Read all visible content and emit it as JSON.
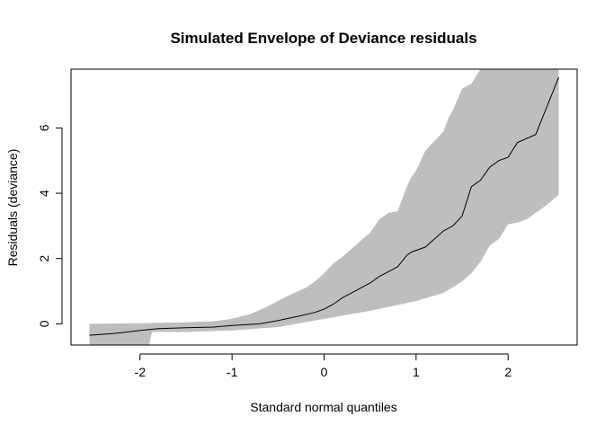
{
  "chart_data": {
    "type": "line",
    "title": "Simulated Envelope of Deviance residuals",
    "xlabel": "Standard normal quantiles",
    "ylabel": "Residuals (deviance)",
    "xlim": [
      -2.75,
      2.75
    ],
    "ylim": [
      -0.65,
      7.8
    ],
    "x_ticks": [
      -2,
      -1,
      0,
      1,
      2
    ],
    "y_ticks": [
      0,
      2,
      4,
      6
    ],
    "grid": false,
    "legend": "none",
    "colors": {
      "envelope": "#bebebe",
      "line": "#000000"
    },
    "series": [
      {
        "role": "envelope-upper",
        "x": [
          -2.55,
          -2.0,
          -1.5,
          -1.2,
          -1.0,
          -0.8,
          -0.6,
          -0.4,
          -0.2,
          -0.1,
          0.0,
          0.1,
          0.2,
          0.3,
          0.4,
          0.5,
          0.6,
          0.7,
          0.8,
          0.9,
          0.95,
          1.0,
          1.1,
          1.2,
          1.3,
          1.35,
          1.4,
          1.5,
          1.6,
          1.7,
          1.8,
          1.9,
          2.0,
          2.2,
          2.3,
          2.55
        ],
        "values": [
          0.0,
          0.02,
          0.05,
          0.08,
          0.15,
          0.3,
          0.55,
          0.85,
          1.1,
          1.3,
          1.55,
          1.85,
          2.05,
          2.3,
          2.55,
          2.8,
          3.2,
          3.4,
          3.45,
          4.2,
          4.5,
          4.7,
          5.3,
          5.6,
          5.9,
          6.3,
          6.55,
          7.2,
          7.35,
          7.8,
          7.8,
          7.8,
          7.8,
          7.8,
          7.8,
          7.8
        ]
      },
      {
        "role": "envelope-lower",
        "x": [
          -2.55,
          -2.0,
          -1.9,
          -1.87,
          -1.5,
          -1.0,
          -0.5,
          0.0,
          0.5,
          1.0,
          1.3,
          1.5,
          1.6,
          1.7,
          1.8,
          1.9,
          2.0,
          2.1,
          2.2,
          2.4,
          2.55
        ],
        "values": [
          -0.7,
          -0.7,
          -0.7,
          -0.25,
          -0.25,
          -0.2,
          -0.1,
          0.15,
          0.4,
          0.7,
          0.95,
          1.3,
          1.55,
          1.9,
          2.4,
          2.6,
          3.05,
          3.1,
          3.2,
          3.6,
          3.95
        ]
      },
      {
        "role": "residuals",
        "x": [
          -2.55,
          -2.3,
          -2.0,
          -1.8,
          -1.5,
          -1.2,
          -1.0,
          -0.7,
          -0.5,
          -0.3,
          -0.1,
          0.0,
          0.1,
          0.2,
          0.3,
          0.4,
          0.5,
          0.6,
          0.7,
          0.8,
          0.9,
          0.95,
          1.1,
          1.2,
          1.3,
          1.4,
          1.5,
          1.6,
          1.7,
          1.8,
          1.9,
          2.0,
          2.1,
          2.3,
          2.55
        ],
        "values": [
          -0.35,
          -0.3,
          -0.2,
          -0.15,
          -0.12,
          -0.1,
          -0.05,
          0.0,
          0.1,
          0.22,
          0.35,
          0.45,
          0.6,
          0.8,
          0.95,
          1.1,
          1.25,
          1.45,
          1.6,
          1.75,
          2.1,
          2.2,
          2.35,
          2.6,
          2.85,
          3.0,
          3.3,
          4.2,
          4.4,
          4.8,
          5.0,
          5.1,
          5.55,
          5.8,
          7.55
        ]
      }
    ]
  }
}
